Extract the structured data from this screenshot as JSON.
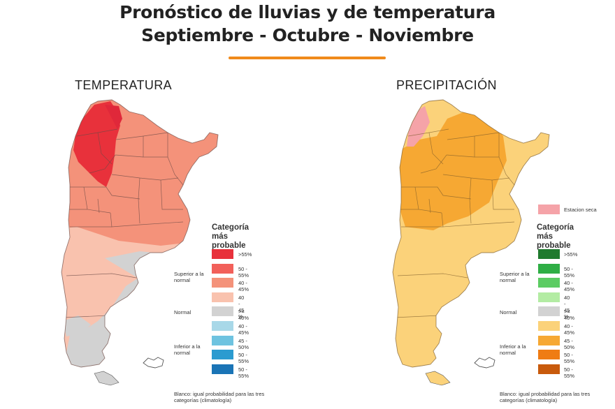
{
  "header": {
    "title_line1": "Pronóstico de lluvias y de temperatura",
    "title_line2": "Septiembre - Octubre - Noviembre",
    "accent_color": "#f08a1c"
  },
  "temperature_map": {
    "title": "TEMPERATURA",
    "legend": {
      "heading_line1": "Categoría",
      "heading_line2": "más probable",
      "superior_label": "Superior a la normal",
      "normal_label": "Normal",
      "inferior_label": "Inferior a la normal",
      "swatches": [
        {
          "label": ">55%",
          "color": "#e8313b"
        },
        {
          "label": "50 - 55%",
          "color": "#f2605a"
        },
        {
          "label": "40 - 45%",
          "color": "#f4927a"
        },
        {
          "label": "40 - 45 %",
          "color": "#f9c2ae"
        },
        {
          "label": ">= 40%",
          "color": "#d2d2d2"
        },
        {
          "label": "40 - 45%",
          "color": "#a8d8e8"
        },
        {
          "label": "45 - 50%",
          "color": "#6ec3e0"
        },
        {
          "label": "50 - 55%",
          "color": "#2b9bd0"
        },
        {
          "label": "50 - 55%",
          "color": "#1a74b6"
        }
      ],
      "note": "Blanco: igual probabilidad para las tres categorías (climatología)"
    }
  },
  "precipitation_map": {
    "title": "PRECIPITACIÓN",
    "dry_season_label": "Estacion seca",
    "dry_season_color": "#f5a3a8",
    "legend": {
      "heading_line1": "Categoría",
      "heading_line2": "más probable",
      "superior_label": "Superior a la normal",
      "normal_label": "Normal",
      "inferior_label": "Inferior a la normal",
      "swatches": [
        {
          "label": ">55%",
          "color": "#1f7a2e"
        },
        {
          "label": "50 - 55%",
          "color": "#2fae45"
        },
        {
          "label": "40 - 45%",
          "color": "#5ccc63"
        },
        {
          "label": "40 - 45 %",
          "color": "#b3eca3"
        },
        {
          "label": ">= 40%",
          "color": "#d2d2d2"
        },
        {
          "label": "40 - 45%",
          "color": "#fbd27a"
        },
        {
          "label": "45 - 50%",
          "color": "#f6a833"
        },
        {
          "label": "50 - 55%",
          "color": "#ef7c14"
        },
        {
          "label": "50 - 55%",
          "color": "#c85a0c"
        }
      ],
      "note": "Blanco: igual probabilidad para las tres categorías (climatología)"
    }
  }
}
